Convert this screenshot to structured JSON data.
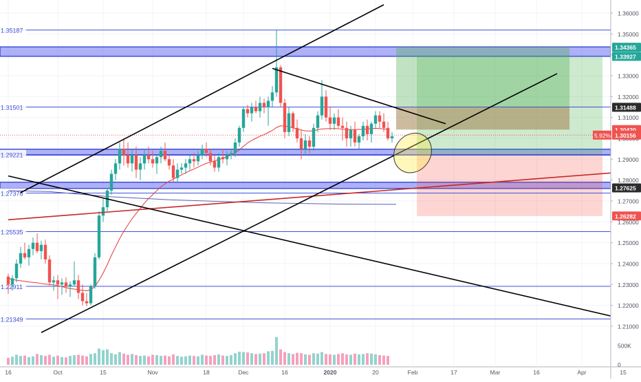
{
  "colors": {
    "background": "#ffffff",
    "grid": "#f0f3fa",
    "level_line": "#3f51d8",
    "zone_fill": "#6b6ff2",
    "candle_up": "#26a69a",
    "candle_down": "#ef5350",
    "ema": "#e53935",
    "trend_line": "#000000",
    "red_trend": "#c62828",
    "blue_ma": "#5b5fb0",
    "target_zone": "#4caf50",
    "stop_zone": "#f44336",
    "highlight_ellipse": "#ffeb3b",
    "current_price_line": "#ef5350",
    "volume_up": "#80cbc4",
    "volume_down": "#f48fb1"
  },
  "chart_data": {
    "type": "candlestick",
    "instrument_hint": "GBP/USD daily",
    "price_axis": {
      "range": [
        1.205,
        1.365
      ],
      "ticks": [
        "1.36000",
        "1.35000",
        "1.34000",
        "1.33000",
        "1.32000",
        "1.31000",
        "1.30000",
        "1.29000",
        "1.28000",
        "1.27000",
        "1.26000",
        "1.25000",
        "1.24000",
        "1.23000",
        "1.22000",
        "1.21000"
      ]
    },
    "volume_axis": {
      "range": [
        0,
        750000
      ],
      "ticks": [
        "500K",
        "0"
      ]
    },
    "time_axis": {
      "ticks": [
        {
          "label": "16",
          "bar": 0
        },
        {
          "label": "Oct",
          "bar": 12
        },
        {
          "label": "15",
          "bar": 23
        },
        {
          "label": "Nov",
          "bar": 35
        },
        {
          "label": "18",
          "bar": 48
        },
        {
          "label": "Dec",
          "bar": 57
        },
        {
          "label": "16",
          "bar": 67
        },
        {
          "label": "2020",
          "bar": 78
        },
        {
          "label": "20",
          "bar": 89
        },
        {
          "label": "Feb",
          "bar": 98
        },
        {
          "label": "17",
          "bar": 108
        },
        {
          "label": "Mar",
          "bar": 118
        },
        {
          "label": "16",
          "bar": 128
        },
        {
          "label": "Apr",
          "bar": 139
        },
        {
          "label": "15",
          "bar": 149
        }
      ],
      "total_bars": 161
    },
    "candles_ohlc": [
      [
        1.2338,
        1.2352,
        1.2255,
        1.23
      ],
      [
        1.23,
        1.2345,
        1.227,
        1.233
      ],
      [
        1.233,
        1.242,
        1.231,
        1.24
      ],
      [
        1.24,
        1.248,
        1.238,
        1.245
      ],
      [
        1.245,
        1.25,
        1.242,
        1.243
      ],
      [
        1.243,
        1.249,
        1.239,
        1.247
      ],
      [
        1.247,
        1.2525,
        1.244,
        1.25
      ],
      [
        1.25,
        1.2545,
        1.245,
        1.246
      ],
      [
        1.246,
        1.251,
        1.242,
        1.249
      ],
      [
        1.249,
        1.2515,
        1.24,
        1.242
      ],
      [
        1.242,
        1.244,
        1.2295,
        1.231
      ],
      [
        1.231,
        1.234,
        1.227,
        1.232
      ],
      [
        1.232,
        1.2345,
        1.223,
        1.23
      ],
      [
        1.23,
        1.233,
        1.225,
        1.231
      ],
      [
        1.231,
        1.2335,
        1.226,
        1.229
      ],
      [
        1.229,
        1.2315,
        1.224,
        1.23
      ],
      [
        1.23,
        1.241,
        1.229,
        1.232
      ],
      [
        1.232,
        1.2345,
        1.223,
        1.226
      ],
      [
        1.226,
        1.23,
        1.22,
        1.222
      ],
      [
        1.222,
        1.226,
        1.2195,
        1.221
      ],
      [
        1.221,
        1.23,
        1.22,
        1.229
      ],
      [
        1.229,
        1.245,
        1.228,
        1.243
      ],
      [
        1.243,
        1.265,
        1.242,
        1.263
      ],
      [
        1.263,
        1.271,
        1.26,
        1.267
      ],
      [
        1.267,
        1.276,
        1.265,
        1.275
      ],
      [
        1.275,
        1.285,
        1.273,
        1.283
      ],
      [
        1.283,
        1.29,
        1.28,
        1.288
      ],
      [
        1.288,
        1.298,
        1.285,
        1.295
      ],
      [
        1.295,
        1.3,
        1.287,
        1.292
      ],
      [
        1.292,
        1.298,
        1.286,
        1.288
      ],
      [
        1.288,
        1.295,
        1.284,
        1.292
      ],
      [
        1.292,
        1.296,
        1.281,
        1.285
      ],
      [
        1.285,
        1.291,
        1.28,
        1.288
      ],
      [
        1.288,
        1.295,
        1.285,
        1.292
      ],
      [
        1.292,
        1.296,
        1.288,
        1.29
      ],
      [
        1.29,
        1.294,
        1.286,
        1.288
      ],
      [
        1.288,
        1.292,
        1.283,
        1.291
      ],
      [
        1.291,
        1.296,
        1.288,
        1.294
      ],
      [
        1.294,
        1.298,
        1.289,
        1.29
      ],
      [
        1.29,
        1.292,
        1.285,
        1.287
      ],
      [
        1.287,
        1.29,
        1.279,
        1.281
      ],
      [
        1.281,
        1.288,
        1.279,
        1.285
      ],
      [
        1.285,
        1.288,
        1.283,
        1.286
      ],
      [
        1.286,
        1.29,
        1.283,
        1.288
      ],
      [
        1.288,
        1.292,
        1.285,
        1.29
      ],
      [
        1.29,
        1.293,
        1.286,
        1.289
      ],
      [
        1.289,
        1.294,
        1.287,
        1.292
      ],
      [
        1.292,
        1.297,
        1.29,
        1.295
      ],
      [
        1.295,
        1.298,
        1.291,
        1.293
      ],
      [
        1.293,
        1.295,
        1.287,
        1.289
      ],
      [
        1.289,
        1.292,
        1.284,
        1.286
      ],
      [
        1.286,
        1.293,
        1.284,
        1.291
      ],
      [
        1.291,
        1.295,
        1.288,
        1.29
      ],
      [
        1.29,
        1.294,
        1.287,
        1.292
      ],
      [
        1.292,
        1.295,
        1.29,
        1.293
      ],
      [
        1.293,
        1.3,
        1.291,
        1.298
      ],
      [
        1.298,
        1.306,
        1.296,
        1.305
      ],
      [
        1.305,
        1.315,
        1.303,
        1.314
      ],
      [
        1.314,
        1.316,
        1.31,
        1.312
      ],
      [
        1.312,
        1.317,
        1.308,
        1.315
      ],
      [
        1.315,
        1.318,
        1.312,
        1.313
      ],
      [
        1.313,
        1.32,
        1.31,
        1.317
      ],
      [
        1.317,
        1.319,
        1.312,
        1.315
      ],
      [
        1.315,
        1.32,
        1.306,
        1.318
      ],
      [
        1.318,
        1.325,
        1.315,
        1.322
      ],
      [
        1.322,
        1.3518,
        1.32,
        1.334
      ],
      [
        1.334,
        1.335,
        1.315,
        1.317
      ],
      [
        1.317,
        1.319,
        1.3,
        1.303
      ],
      [
        1.303,
        1.315,
        1.301,
        1.312
      ],
      [
        1.312,
        1.313,
        1.303,
        1.305
      ],
      [
        1.305,
        1.309,
        1.298,
        1.3
      ],
      [
        1.3,
        1.304,
        1.29,
        1.295
      ],
      [
        1.295,
        1.302,
        1.292,
        1.299
      ],
      [
        1.299,
        1.301,
        1.293,
        1.296
      ],
      [
        1.296,
        1.307,
        1.294,
        1.305
      ],
      [
        1.305,
        1.313,
        1.303,
        1.311
      ],
      [
        1.311,
        1.328,
        1.309,
        1.32
      ],
      [
        1.32,
        1.323,
        1.308,
        1.31
      ],
      [
        1.31,
        1.315,
        1.304,
        1.307
      ],
      [
        1.307,
        1.312,
        1.304,
        1.31
      ],
      [
        1.31,
        1.314,
        1.305,
        1.306
      ],
      [
        1.306,
        1.31,
        1.299,
        1.305
      ],
      [
        1.305,
        1.308,
        1.296,
        1.3
      ],
      [
        1.3,
        1.306,
        1.296,
        1.304
      ],
      [
        1.304,
        1.308,
        1.296,
        1.298
      ],
      [
        1.298,
        1.302,
        1.295,
        1.301
      ],
      [
        1.301,
        1.308,
        1.299,
        1.306
      ],
      [
        1.306,
        1.309,
        1.299,
        1.302
      ],
      [
        1.302,
        1.308,
        1.298,
        1.307
      ],
      [
        1.307,
        1.313,
        1.305,
        1.311
      ],
      [
        1.311,
        1.313,
        1.305,
        1.308
      ],
      [
        1.308,
        1.312,
        1.303,
        1.305
      ],
      [
        1.305,
        1.308,
        1.299,
        1.3
      ],
      [
        1.3,
        1.303,
        1.298,
        1.301
      ]
    ],
    "volumes": [
      180000,
      210000,
      260000,
      230000,
      240000,
      200000,
      220000,
      280000,
      250000,
      230000,
      260000,
      210000,
      240000,
      200000,
      190000,
      230000,
      250000,
      260000,
      240000,
      220000,
      280000,
      300000,
      420000,
      380000,
      400000,
      300000,
      270000,
      330000,
      290000,
      260000,
      280000,
      250000,
      230000,
      240000,
      220000,
      260000,
      250000,
      230000,
      240000,
      220000,
      270000,
      230000,
      210000,
      220000,
      240000,
      230000,
      220000,
      260000,
      240000,
      230000,
      250000,
      270000,
      240000,
      230000,
      250000,
      300000,
      340000,
      330000,
      320000,
      300000,
      280000,
      290000,
      300000,
      350000,
      360000,
      720000,
      400000,
      330000,
      300000,
      280000,
      310000,
      300000,
      270000,
      260000,
      300000,
      290000,
      330000,
      280000,
      270000,
      260000,
      280000,
      300000,
      270000,
      260000,
      290000,
      270000,
      280000,
      300000,
      290000,
      270000,
      250000,
      240000,
      230000
    ],
    "horizontal_levels": [
      {
        "price": 1.35187,
        "label": "1.35187"
      },
      {
        "price": 1.31501,
        "label": "1.31501"
      },
      {
        "price": 1.29221,
        "label": "1.29221"
      },
      {
        "price": 1.27378,
        "label": "1.27378"
      },
      {
        "price": 1.25535,
        "label": "1.25535"
      },
      {
        "price": 1.22911,
        "label": "1.22911"
      },
      {
        "price": 1.21349,
        "label": "1.21349"
      }
    ],
    "zones": [
      {
        "from": 1.3393,
        "to": 1.3438
      },
      {
        "from": 1.292,
        "to": 1.2948
      },
      {
        "from": 1.276,
        "to": 1.279
      }
    ],
    "price_labels": [
      {
        "price": 1.34365,
        "text": "1.34365",
        "color": "#26a69a"
      },
      {
        "price": 1.33927,
        "text": "1.33927",
        "color": "#26a69a"
      },
      {
        "price": 1.31488,
        "text": "1.31488",
        "color": "#2b2b2b"
      },
      {
        "price": 1.3042,
        "text": "1.30420",
        "color": "#ef5350"
      },
      {
        "price": 1.30156,
        "text": "1.30156",
        "color": "#ef5350",
        "prefix": "5.92%"
      },
      {
        "price": 1.27625,
        "text": "1.27625",
        "color": "#2b2b2b"
      },
      {
        "price": 1.26282,
        "text": "1.26282",
        "color": "#ef5350"
      }
    ],
    "position_tool": {
      "entry": 1.3042,
      "target": 1.3438,
      "stop": 1.315,
      "start_bar": 94,
      "end_bar": 136,
      "alt_entry": 1.292,
      "alt_target": 1.3393,
      "alt_stop": 1.2628,
      "alt_start_bar": 99,
      "alt_end_bar": 144
    },
    "trend_lines": [
      {
        "from": {
          "bar": 0,
          "price": 1.261
        },
        "to": {
          "bar": 157,
          "price": 1.2851
        },
        "color": "red"
      },
      {
        "from": {
          "bar": 8,
          "price": 1.207
        },
        "to": {
          "bar": 133,
          "price": 1.331
        },
        "color": "black"
      },
      {
        "from": {
          "bar": 0,
          "price": 1.282
        },
        "to": {
          "bar": 148,
          "price": 1.214
        },
        "color": "black"
      },
      {
        "from": {
          "bar": 3,
          "price": 1.274
        },
        "to": {
          "bar": 91,
          "price": 1.364
        },
        "color": "black"
      },
      {
        "from": {
          "bar": 64,
          "price": 1.3335
        },
        "to": {
          "bar": 106,
          "price": 1.307
        },
        "color": "black"
      }
    ],
    "ema_series": [
      1.233,
      1.2325,
      1.232,
      1.2318,
      1.2315,
      1.2312,
      1.231,
      1.2308,
      1.2305,
      1.2302,
      1.23,
      1.2298,
      1.2295,
      1.229,
      1.2285,
      1.228,
      1.2278,
      1.2275,
      1.2272,
      1.227,
      1.2275,
      1.229,
      1.232,
      1.2355,
      1.2395,
      1.244,
      1.248,
      1.252,
      1.2555,
      1.2585,
      1.2615,
      1.264,
      1.2665,
      1.269,
      1.2712,
      1.273,
      1.275,
      1.2768,
      1.2782,
      1.2795,
      1.2805,
      1.2815,
      1.2825,
      1.2835,
      1.2845,
      1.2853,
      1.2862,
      1.2872,
      1.288,
      1.2886,
      1.2892,
      1.2898,
      1.2905,
      1.2912,
      1.292,
      1.293,
      1.2945,
      1.2962,
      1.2978,
      1.299,
      1.3,
      1.301,
      1.3018,
      1.3028,
      1.3038,
      1.3052,
      1.306,
      1.3058,
      1.3056,
      1.305,
      1.3045,
      1.304,
      1.3036,
      1.3035,
      1.3036,
      1.3042,
      1.3045,
      1.3046,
      1.3047,
      1.3047,
      1.3046,
      1.3044,
      1.3043,
      1.3042,
      1.3042,
      1.3043,
      1.3043,
      1.3045,
      1.3047,
      1.3048,
      1.3047,
      1.3045,
      1.3043
    ],
    "blue_ma_series": [
      {
        "bar": 0,
        "price": 1.275
      },
      {
        "bar": 10,
        "price": 1.2745
      },
      {
        "bar": 25,
        "price": 1.272
      },
      {
        "bar": 40,
        "price": 1.2705
      },
      {
        "bar": 60,
        "price": 1.2692
      },
      {
        "bar": 80,
        "price": 1.2685
      },
      {
        "bar": 94,
        "price": 1.2684
      }
    ],
    "ellipse": {
      "bar": 98,
      "price": 1.293
    }
  }
}
